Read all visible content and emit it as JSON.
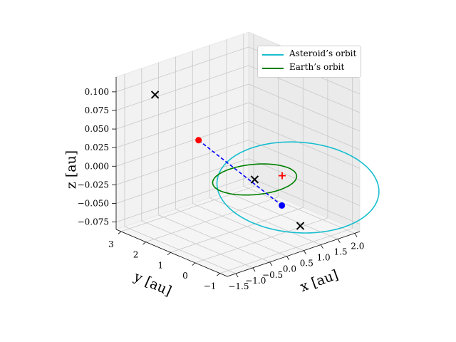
{
  "chart_data": {
    "type": "line",
    "projection": "3d",
    "title": "",
    "xlabel": "$x$ [au]",
    "ylabel": "$y$ [au]",
    "zlabel": "$z$ [au]",
    "xlabel_text": "x [au]",
    "ylabel_text": "y [au]",
    "zlabel_text": "z [au]",
    "xlim": [
      -1.75,
      2.15
    ],
    "ylim": [
      -1.3,
      3.2
    ],
    "zlim": [
      -0.085,
      0.12
    ],
    "xticks": [
      -1.5,
      -1.0,
      -0.5,
      0.0,
      0.5,
      1.0,
      1.5,
      2.0
    ],
    "xtick_labels": [
      "−1.5",
      "−1.0",
      "−0.5",
      "0.0",
      "0.5",
      "1.0",
      "1.5",
      "2.0"
    ],
    "yticks": [
      -1,
      0,
      1,
      2,
      3
    ],
    "ytick_labels": [
      "−1",
      "0",
      "1",
      "2",
      "3"
    ],
    "zticks": [
      -0.075,
      -0.05,
      -0.025,
      0.0,
      0.025,
      0.05,
      0.075,
      0.1
    ],
    "ztick_labels": [
      "−0.075",
      "−0.050",
      "−0.025",
      "0.000",
      "0.025",
      "0.050",
      "0.075",
      "0.100"
    ],
    "grid": true,
    "legend_position": "upper right",
    "series": [
      {
        "name": "Asteroid's orbit",
        "color": "#17becf",
        "kind": "ellipse",
        "semi_major_axis_au": 1.95,
        "eccentricity": 0.55,
        "inclination_deg": 3.3,
        "longitude_ascending_node_deg": 140,
        "argument_perihelion_deg": 20
      },
      {
        "name": "Earth's orbit",
        "color": "#008000",
        "kind": "circle",
        "radius_au": 1.0
      }
    ],
    "legend": [
      {
        "label": "Asteroid’s orbit",
        "color": "#17becf"
      },
      {
        "label": "Earth’s orbit",
        "color": "#008000"
      }
    ],
    "markers": [
      {
        "symbol": "x",
        "color": "#000000",
        "x": -1.02,
        "y": 2.63,
        "z": 0.0928
      },
      {
        "symbol": "x",
        "color": "#000000",
        "x": 0.0,
        "y": 0.0,
        "z": 0.0
      },
      {
        "symbol": "x",
        "color": "#000000",
        "x": 0.85,
        "y": -0.68,
        "z": -0.066
      },
      {
        "symbol": "dot",
        "color": "#ff0000",
        "x": -0.72,
        "y": 1.28,
        "z": 0.046
      },
      {
        "symbol": "dot",
        "color": "#0000ff",
        "x": 0.62,
        "y": -0.25,
        "z": -0.041
      },
      {
        "symbol": "plus",
        "color": "#ff0000",
        "x": 0.97,
        "y": 0.22,
        "z": -0.013
      }
    ],
    "segments": [
      {
        "color": "#0000ff",
        "style": "dashed",
        "from": [
          -0.72,
          1.28,
          0.046
        ],
        "to": [
          0.62,
          -0.25,
          -0.041
        ]
      }
    ]
  }
}
